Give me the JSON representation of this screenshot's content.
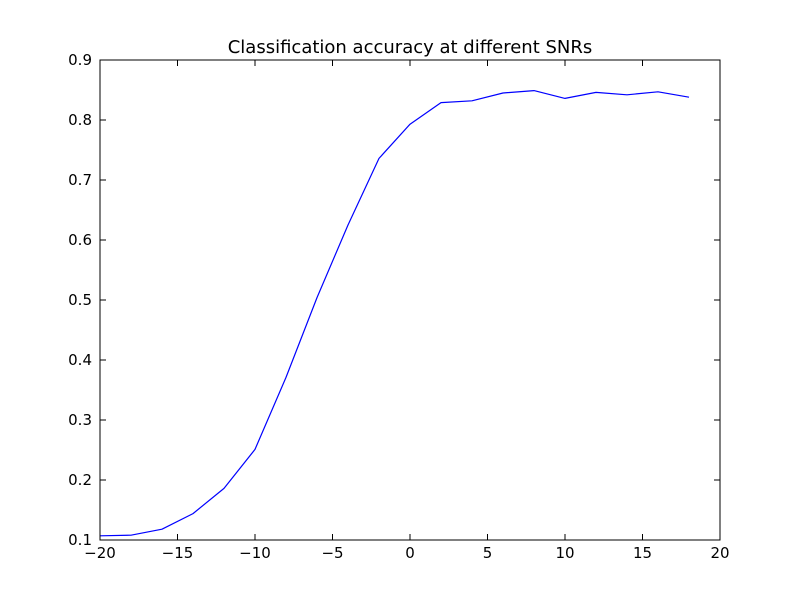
{
  "chart_data": {
    "type": "line",
    "title": "Classification accuracy at different SNRs",
    "xlabel": "",
    "ylabel": "",
    "xlim": [
      -20,
      20
    ],
    "ylim": [
      0.1,
      0.9
    ],
    "x_ticks": [
      -20,
      -15,
      -10,
      -5,
      0,
      5,
      10,
      15,
      20
    ],
    "y_ticks": [
      0.1,
      0.2,
      0.3,
      0.4,
      0.5,
      0.6,
      0.7,
      0.8,
      0.9
    ],
    "x_tick_labels": [
      "−20",
      "−15",
      "−10",
      "−5",
      "0",
      "5",
      "10",
      "15",
      "20"
    ],
    "y_tick_labels": [
      "0.1",
      "0.2",
      "0.3",
      "0.4",
      "0.5",
      "0.6",
      "0.7",
      "0.8",
      "0.9"
    ],
    "grid": false,
    "series": [
      {
        "color": "#0000ff",
        "x": [
          -20,
          -18,
          -16,
          -14,
          -12,
          -10,
          -8,
          -6,
          -4,
          -2,
          0,
          2,
          4,
          6,
          8,
          10,
          12,
          14,
          16,
          18
        ],
        "y": [
          0.107,
          0.108,
          0.118,
          0.144,
          0.186,
          0.251,
          0.371,
          0.504,
          0.625,
          0.736,
          0.793,
          0.829,
          0.832,
          0.845,
          0.849,
          0.836,
          0.846,
          0.842,
          0.847,
          0.838
        ]
      }
    ]
  }
}
